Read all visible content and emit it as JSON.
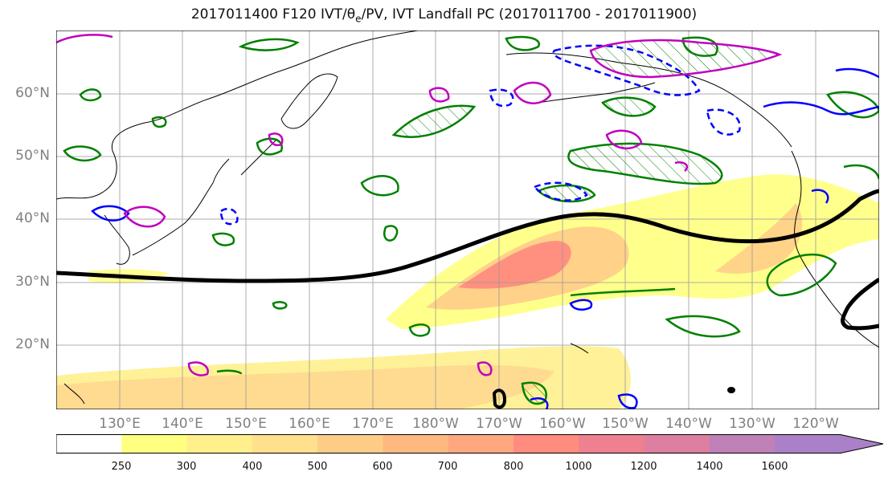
{
  "title": {
    "prefix": "2017011400 F120 IVT/θ",
    "sub": "e",
    "suffix": "/PV, IVT Landfall PC (2017011700 - 2017011900)"
  },
  "lat_labels": [
    "60°N",
    "50°N",
    "40°N",
    "30°N",
    "20°N"
  ],
  "lon_labels": [
    "130°E",
    "140°E",
    "150°E",
    "160°E",
    "170°E",
    "180°W",
    "170°W",
    "160°W",
    "150°W",
    "140°W",
    "130°W",
    "120°W"
  ],
  "colorbar": {
    "ticks": [
      "250",
      "300",
      "400",
      "500",
      "600",
      "700",
      "800",
      "1000",
      "1200",
      "1400",
      "1600"
    ],
    "colors": [
      "#ffffff",
      "#ffff80",
      "#fff08c",
      "#ffe08c",
      "#ffcc88",
      "#ffb880",
      "#ffa880",
      "#ff8c7e",
      "#ee8090",
      "#dd7fa0",
      "#c080b8",
      "#aa80c8"
    ]
  },
  "colors": {
    "ivt_low": "#ffff80",
    "ivt_high": "#ff8c7e",
    "pc_line": "#000000",
    "pv_contour": "#008000",
    "theta_contour": "#0000ff",
    "mslp_contour": "#c000c0"
  }
}
